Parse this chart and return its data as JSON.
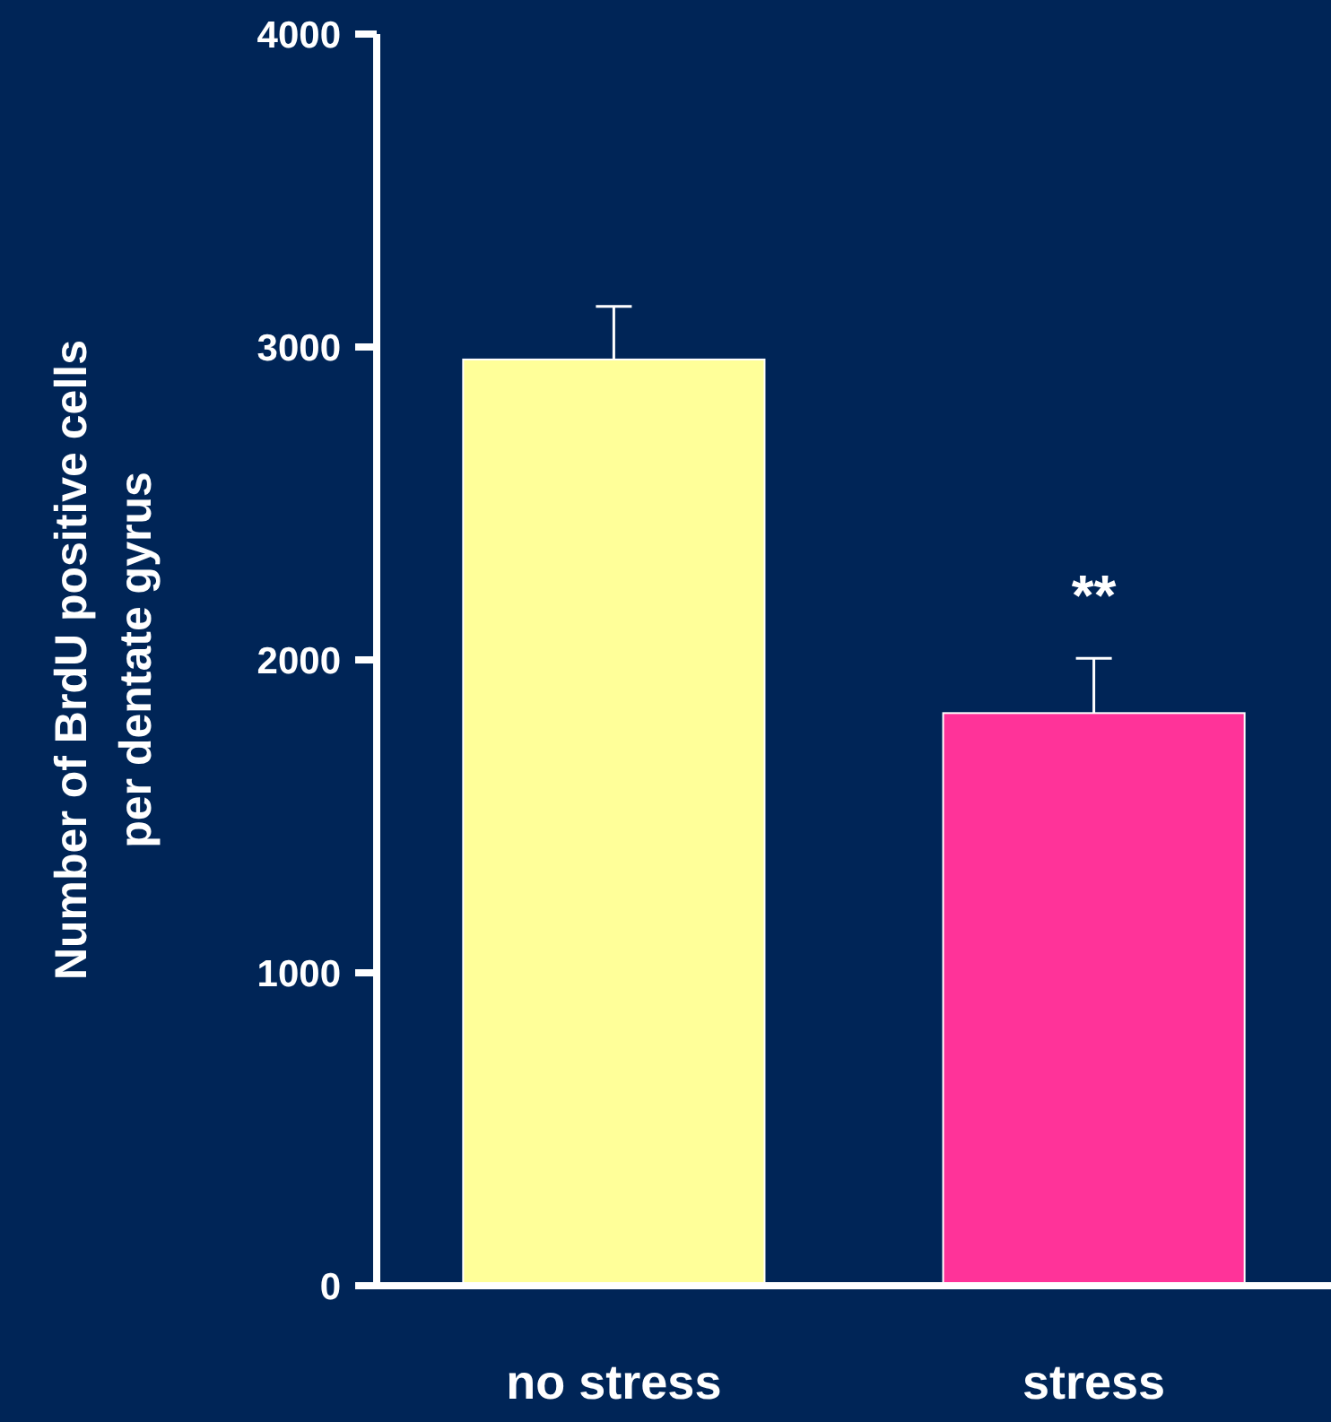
{
  "chart_data": {
    "type": "bar",
    "ylabel": "Number of BrdU positive cells\nper dentate gyrus",
    "categories": [
      "no stress",
      "stress"
    ],
    "values": [
      2960,
      1830
    ],
    "colors": [
      "#ffff99",
      "#ff3399"
    ],
    "errors": [
      170,
      175
    ],
    "ylim": [
      0,
      4000
    ],
    "yticks": [
      0,
      1000,
      2000,
      3000,
      4000
    ],
    "annotations": [
      "**"
    ],
    "grid": false
  }
}
